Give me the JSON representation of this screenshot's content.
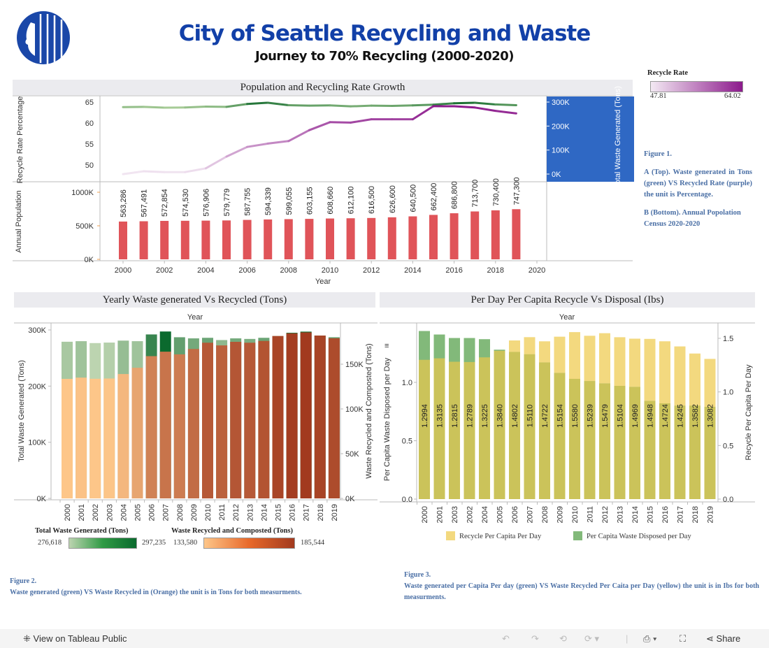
{
  "header": {
    "title": "City of Seattle Recycling and Waste",
    "subtitle": "Journey to 70% Recycling (2000-2020)",
    "logo": "seattle-logo"
  },
  "recycle_rate_legend": {
    "title": "Recycle Rate",
    "min": "47.81",
    "max": "64.02",
    "color_low": "#f3e9f3",
    "color_high": "#8c1a8c"
  },
  "figure1": {
    "label": "Figure 1.",
    "line_a": "A (Top). Waste generated in Tons (green) VS Recycled Rate (purple) the unit is Percentage.",
    "line_b": "B (Bottom). Annual Popolation Census 2020-2020"
  },
  "figure2": {
    "label": "Figure 2.",
    "text": "Waste generated (green) VS Waste Recycled in (Orange) the unit is in Tons for both measurments."
  },
  "figure3": {
    "label": "Figure 3.",
    "text": "Waste generated per Capita Per day (green) VS Waste Recycled Per Caita per Day (yellow) the unit is in Ibs for both measurments."
  },
  "waste_legend": {
    "green_title": "Total Waste Generated (Tons)",
    "green_min": "276,618",
    "green_max": "297,235",
    "orange_title": "Waste Recycled and Composted (Tons)",
    "orange_min": "133,580",
    "orange_max": "185,544"
  },
  "toolbar": {
    "view_label": "View on Tableau Public",
    "share_label": "Share"
  },
  "chart_data": [
    {
      "type": "line+bar",
      "title": "Population and Recycling Rate Growth",
      "xlabel": "Year",
      "x_ticks": [
        "2000",
        "2002",
        "2004",
        "2006",
        "2008",
        "2010",
        "2012",
        "2014",
        "2016",
        "2018",
        "2020"
      ],
      "years": [
        2000,
        2001,
        2002,
        2003,
        2004,
        2005,
        2006,
        2007,
        2008,
        2009,
        2010,
        2011,
        2012,
        2013,
        2014,
        2015,
        2016,
        2017,
        2018,
        2019
      ],
      "recycle_rate": {
        "ylabel": "Recycle Rate Percentage",
        "ylim": [
          47,
          66
        ],
        "ticks": [
          "50",
          "55",
          "60",
          "65"
        ],
        "values": [
          47.81,
          48.5,
          48.3,
          48.3,
          49.2,
          52.0,
          54.3,
          55.1,
          55.7,
          58.3,
          60.2,
          60.1,
          60.9,
          60.9,
          60.9,
          64.02,
          64.0,
          63.7,
          62.9,
          62.3
        ],
        "color": "#8c1a8c"
      },
      "total_waste": {
        "ylabel": "Total Waste Generated (Tons)",
        "ylim": [
          0,
          310000
        ],
        "ticks": [
          "0K",
          "100K",
          "200K",
          "300K"
        ],
        "values": [
          279000,
          280000,
          276618,
          277500,
          281000,
          280000,
          292000,
          297235,
          287000,
          285000,
          286000,
          282000,
          285000,
          284000,
          286000,
          289000,
          295000,
          297000,
          290000,
          287000
        ],
        "color": "#2e8b3e"
      },
      "population": {
        "ylabel": "Annual Population",
        "ylim": [
          0,
          1100000
        ],
        "ticks": [
          "0K",
          "500K",
          "1000K"
        ],
        "values": [
          563286,
          567491,
          572854,
          574530,
          576906,
          579779,
          587755,
          594339,
          599055,
          603155,
          608660,
          612100,
          616500,
          626600,
          640500,
          662400,
          686800,
          713700,
          730400,
          747300
        ],
        "labels": [
          "563,286",
          "567,491",
          "572,854",
          "574,530",
          "576,906",
          "579,779",
          "587,755",
          "594,339",
          "599,055",
          "603,155",
          "608,660",
          "612,100",
          "616,500",
          "626,600",
          "640,500",
          "662,400",
          "686,800",
          "713,700",
          "730,400",
          "747,300"
        ],
        "color": "#e05459"
      }
    },
    {
      "type": "bar",
      "title": "Yearly Waste generated Vs Recycled (Tons)",
      "xlabel": "Year",
      "categories": [
        "2000",
        "2001",
        "2002",
        "2003",
        "2004",
        "2005",
        "2006",
        "2007",
        "2008",
        "2009",
        "2010",
        "2011",
        "2012",
        "2013",
        "2014",
        "2015",
        "2016",
        "2017",
        "2018",
        "2019"
      ],
      "series": [
        {
          "name": "Total Waste Generated (Tons)",
          "axis": "left",
          "ylim": [
            0,
            310000
          ],
          "ticks": [
            "0K",
            "100K",
            "200K",
            "300K"
          ],
          "values": [
            279000,
            280000,
            276618,
            277500,
            281000,
            280000,
            292000,
            297235,
            287000,
            285000,
            286000,
            282000,
            285000,
            284000,
            286000,
            289000,
            295000,
            297000,
            290000,
            287000
          ],
          "color_low": "#bcd4b0",
          "color_high": "#0b6a2e"
        },
        {
          "name": "Waste Recycled and Composted (Tons)",
          "axis": "right",
          "ylim": [
            0,
            193000
          ],
          "ticks": [
            "0K",
            "50K",
            "100K",
            "150K"
          ],
          "values": [
            133580,
            135000,
            133700,
            134000,
            139000,
            146000,
            159000,
            164000,
            161000,
            167000,
            174000,
            171000,
            175000,
            174000,
            176000,
            181500,
            184500,
            185544,
            182000,
            179000
          ],
          "color_low": "#fdc689",
          "color_high": "#a23a1f"
        }
      ],
      "ylabel_left": "Total Waste Generated (Tons)",
      "ylabel_right": "Waste Recycled and Composted (Tons)"
    },
    {
      "type": "bar",
      "title": "Per Day Per Capita Recycle Vs Disposal (Ibs)",
      "xlabel": "Year",
      "categories": [
        "2000",
        "2001",
        "2003",
        "2002",
        "2004",
        "2005",
        "2006",
        "2007",
        "2008",
        "2009",
        "2010",
        "2011",
        "2012",
        "2013",
        "2014",
        "2015",
        "2016",
        "2017",
        "2018",
        "2019"
      ],
      "series": [
        {
          "name": "Recycle Per Capita Per Day",
          "axis": "right",
          "ylim": [
            0,
            1.6
          ],
          "ticks": [
            "0.0",
            "0.5",
            "1.0",
            "1.5"
          ],
          "values": [
            1.2994,
            1.3135,
            1.2815,
            1.2789,
            1.3225,
            1.384,
            1.4802,
            1.511,
            1.4722,
            1.5154,
            1.558,
            1.5239,
            1.5479,
            1.5104,
            1.4969,
            1.4948,
            1.4724,
            1.4245,
            1.3582,
            1.3082
          ],
          "labels": [
            "1.2994",
            "1.3135",
            "1.2815",
            "1.2789",
            "1.3225",
            "1.3840",
            "1.4802",
            "1.5110",
            "1.4722",
            "1.5154",
            "1.5580",
            "1.5239",
            "1.5479",
            "1.5104",
            "1.4969",
            "1.4948",
            "1.4724",
            "1.4245",
            "1.3582",
            "1.3082"
          ],
          "color": "#f3d97f"
        },
        {
          "name": "Per Capita Waste Disposed per Day",
          "axis": "left",
          "ylim": [
            0,
            1.5
          ],
          "ticks": [
            "0.0",
            "0.5",
            "1.0"
          ],
          "values": [
            1.44,
            1.41,
            1.38,
            1.38,
            1.37,
            1.28,
            1.26,
            1.24,
            1.17,
            1.08,
            1.03,
            1.01,
            0.99,
            0.97,
            0.96,
            0.84,
            0.82,
            0.8,
            0.8,
            0.79
          ],
          "color": "#82b97a"
        }
      ],
      "overlap_color": "#cbc35a",
      "ylabel_left": "Per Capita Waste Disposed per Day",
      "ylabel_right": "Recycle Per Capita Per Day",
      "legend_position": "bottom"
    }
  ]
}
